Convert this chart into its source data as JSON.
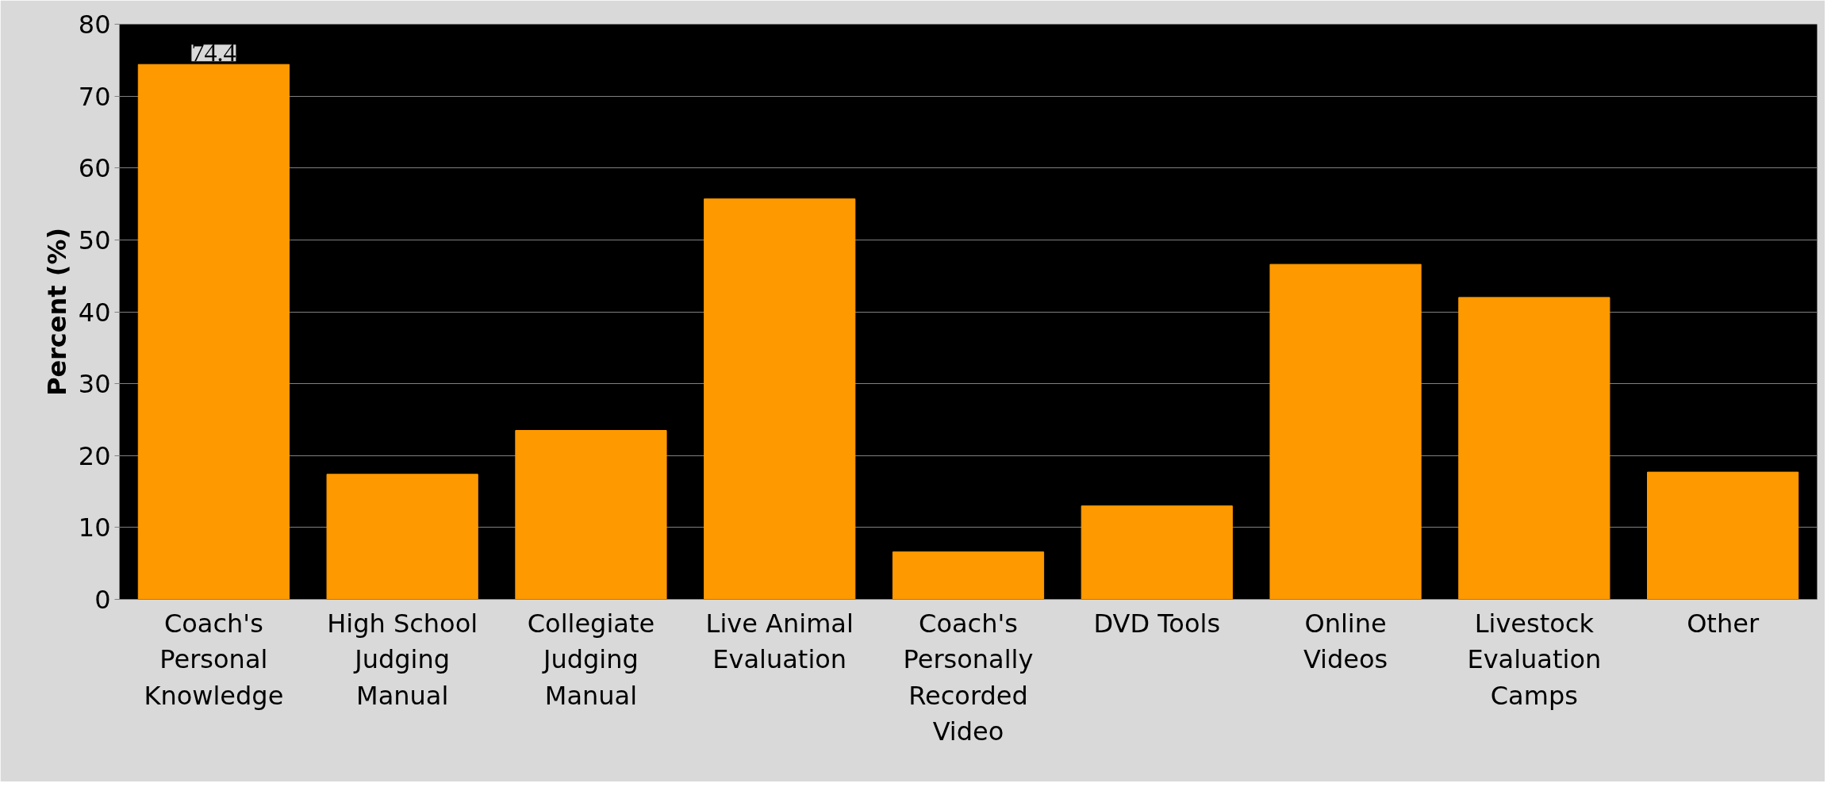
{
  "chart_data": {
    "type": "bar",
    "ylabel": "Percent (%)",
    "categories": [
      "Coach's\nPersonal\nKnowledge",
      "High School\nJudging\nManual",
      "Collegiate\nJudging\nManual",
      "Live Animal\nEvaluation",
      "Coach's\nPersonally\nRecorded\nVideo",
      "DVD Tools",
      "Online\nVideos",
      "Livestock\nEvaluation\nCamps",
      "Other"
    ],
    "values": [
      74.4,
      17.4,
      23.5,
      55.7,
      6.6,
      13.0,
      46.6,
      42.0,
      17.7
    ],
    "value_labels": [
      "74.4",
      null,
      null,
      null,
      null,
      null,
      null,
      null,
      null
    ],
    "color": "#ff9900",
    "ylim": [
      0,
      80
    ],
    "yticks": [
      0,
      10,
      20,
      30,
      40,
      50,
      60,
      70,
      80
    ],
    "grid": "y"
  }
}
